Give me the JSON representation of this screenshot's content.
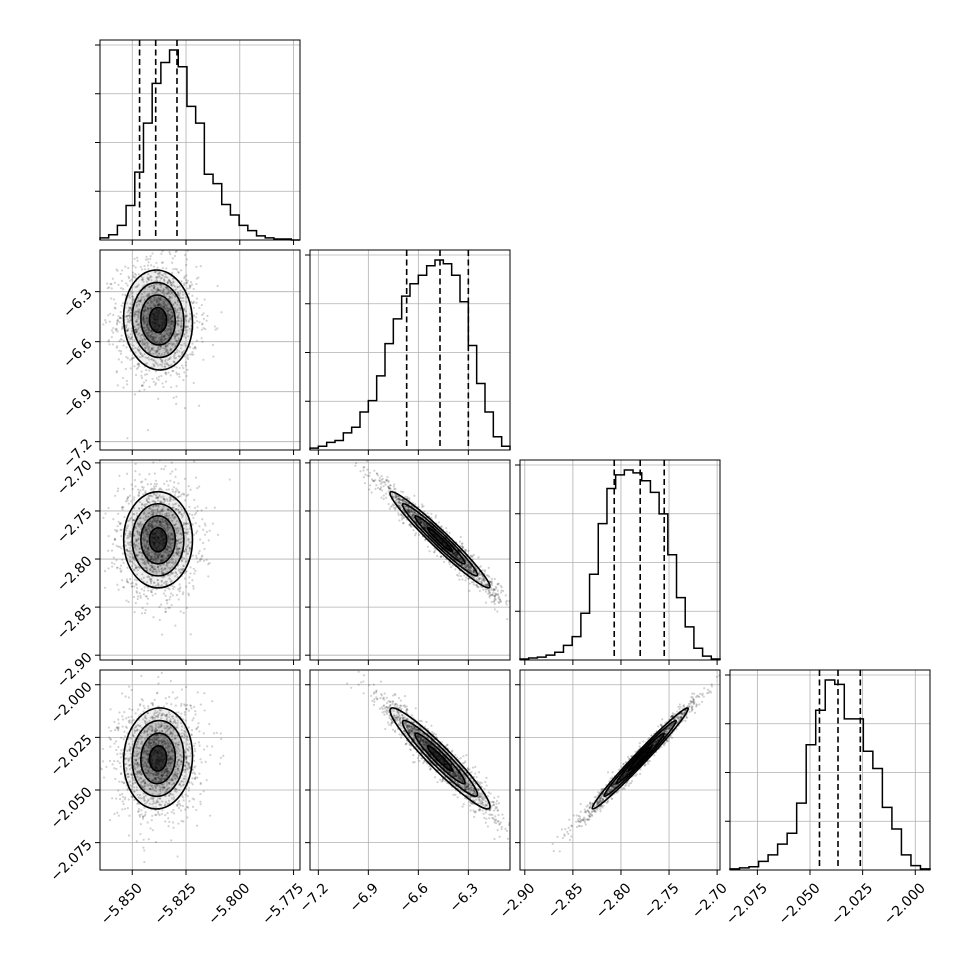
{
  "chart_data": {
    "type": "corner",
    "parameters": [
      {
        "id": "p0",
        "range": [
          -5.865,
          -5.772
        ],
        "ticks": [
          "−5.850",
          "−5.825",
          "−5.800",
          "−5.775"
        ],
        "tick_values": [
          -5.85,
          -5.825,
          -5.8,
          -5.775
        ]
      },
      {
        "id": "p1",
        "range": [
          -7.25,
          -6.05
        ],
        "ticks": [
          "−7.2",
          "−6.9",
          "−6.6",
          "−6.3"
        ],
        "tick_values": [
          -7.2,
          -6.9,
          -6.6,
          -6.3
        ]
      },
      {
        "id": "p2",
        "range": [
          -2.905,
          -2.697
        ],
        "ticks": [
          "−2.90",
          "−2.85",
          "−2.80",
          "−2.75",
          "−2.70"
        ],
        "tick_values": [
          -2.9,
          -2.85,
          -2.8,
          -2.75,
          -2.7
        ]
      },
      {
        "id": "p3",
        "range": [
          -2.088,
          -1.993
        ],
        "ticks": [
          "−2.075",
          "−2.050",
          "−2.025",
          "−2.000"
        ],
        "tick_values": [
          -2.075,
          -2.05,
          -2.025,
          -2.0
        ]
      }
    ],
    "histograms": [
      {
        "param": 0,
        "quantiles": [
          -5.8466,
          -5.8391,
          -5.8292
        ],
        "max": 182,
        "counts": [
          2,
          5,
          14,
          33,
          65,
          112,
          150,
          170,
          182,
          166,
          128,
          112,
          63,
          54,
          34,
          24,
          14,
          9,
          4,
          2,
          1,
          1,
          0
        ]
      },
      {
        "param": 1,
        "quantiles": [
          -6.67,
          -6.47,
          -6.3
        ],
        "max": 200,
        "counts": [
          2,
          4,
          8,
          10,
          18,
          24,
          40,
          52,
          78,
          112,
          138,
          162,
          175,
          184,
          194,
          200,
          196,
          184,
          156,
          110,
          70,
          40,
          14,
          4
        ]
      },
      {
        "param": 2,
        "quantiles": [
          -2.807,
          -2.78,
          -2.755
        ],
        "max": 195,
        "counts": [
          1,
          2,
          3,
          5,
          8,
          15,
          24,
          48,
          88,
          140,
          176,
          190,
          195,
          192,
          184,
          172,
          150,
          108,
          64,
          34,
          12,
          4,
          1
        ]
      },
      {
        "param": 3,
        "quantiles": [
          -2.0455,
          -2.0367,
          -2.0261
        ],
        "max": 176,
        "counts": [
          1,
          2,
          3,
          8,
          14,
          24,
          34,
          62,
          116,
          148,
          176,
          172,
          140,
          140,
          110,
          94,
          58,
          38,
          14,
          4,
          1
        ]
      }
    ],
    "densities": [
      {
        "x_param": 0,
        "y_param": 1,
        "mean": [
          -5.838,
          -6.47
        ],
        "sd": [
          0.008,
          0.15
        ],
        "rho": -0.05
      },
      {
        "x_param": 0,
        "y_param": 2,
        "mean": [
          -5.838,
          -2.78
        ],
        "sd": [
          0.008,
          0.025
        ],
        "rho": 0.0
      },
      {
        "x_param": 1,
        "y_param": 2,
        "mean": [
          -6.47,
          -2.78
        ],
        "sd": [
          0.15,
          0.025
        ],
        "rho": -0.97
      },
      {
        "x_param": 0,
        "y_param": 3,
        "mean": [
          -5.838,
          -2.035
        ],
        "sd": [
          0.008,
          0.012
        ],
        "rho": 0.05
      },
      {
        "x_param": 1,
        "y_param": 3,
        "mean": [
          -6.47,
          -2.035
        ],
        "sd": [
          0.15,
          0.012
        ],
        "rho": -0.95
      },
      {
        "x_param": 2,
        "y_param": 3,
        "mean": [
          -2.78,
          -2.035
        ],
        "sd": [
          0.025,
          0.012
        ],
        "rho": 0.985
      }
    ],
    "contour_levels_sigma": [
      0.5,
      1.0,
      1.5,
      2.0
    ],
    "grid": true,
    "quantiles_shown": [
      0.16,
      0.5,
      0.84
    ]
  }
}
